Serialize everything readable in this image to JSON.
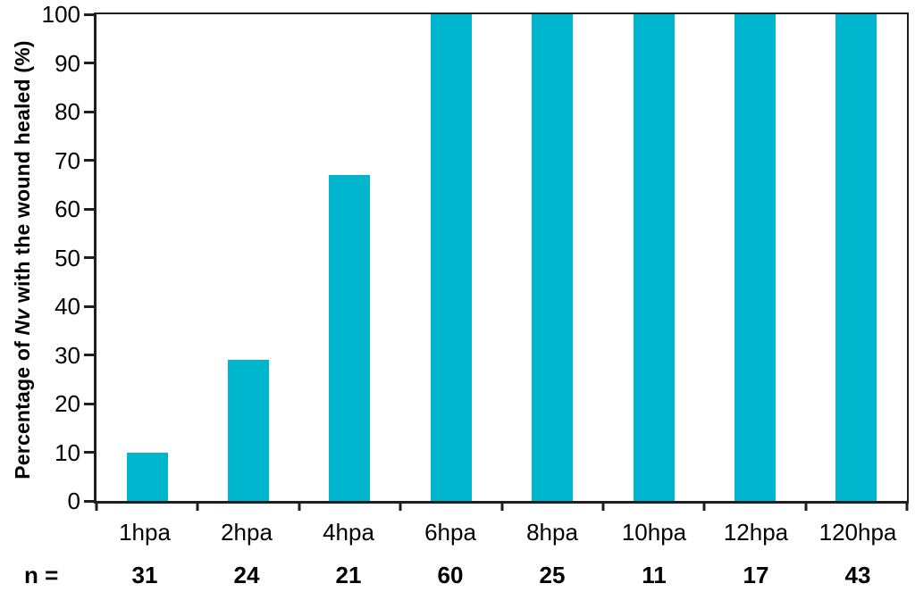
{
  "chart_data": {
    "type": "bar",
    "title": "",
    "xlabel": "",
    "ylabel": "Percentage of Nv with the wound healed (%)",
    "ylabel_parts": {
      "pre": "Percentage of ",
      "italic": "Nv",
      "post": " with the wound healed (%)"
    },
    "categories": [
      "1hpa",
      "2hpa",
      "4hpa",
      "6hpa",
      "8hpa",
      "10hpa",
      "12hpa",
      "120hpa"
    ],
    "values": [
      10,
      29,
      67,
      100,
      100,
      100,
      100,
      100
    ],
    "n_label": "n =",
    "n_values": [
      "31",
      "24",
      "21",
      "60",
      "25",
      "11",
      "17",
      "43"
    ],
    "ylim": [
      0,
      100
    ],
    "ytick_step": 10,
    "grid": false,
    "legend": false,
    "colors": {
      "bar": "#00b5ce",
      "axis": "#1f1f1f",
      "text": "#000000",
      "background": "#ffffff"
    }
  }
}
